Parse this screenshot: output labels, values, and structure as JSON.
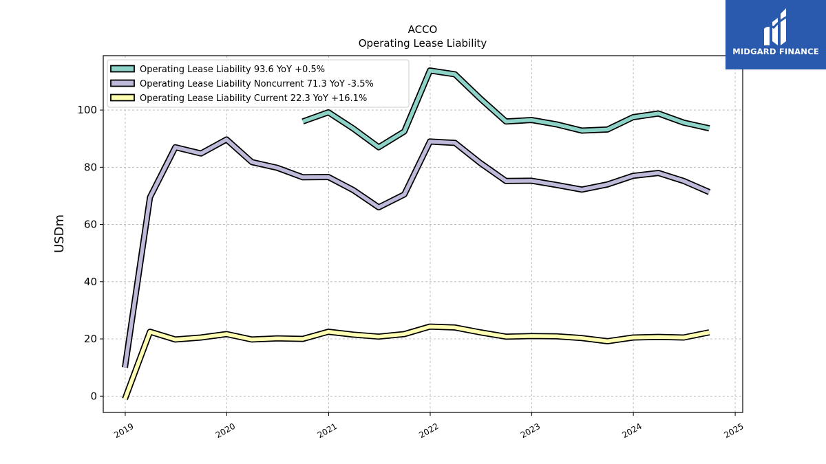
{
  "logo": {
    "text": "MIDGARD FINANCE"
  },
  "chart_data": {
    "type": "line",
    "title": "ACCO",
    "subtitle": "Operating Lease Liability",
    "ylabel": "USDm",
    "xlabel": "",
    "ylim": [
      -5.7,
      119
    ],
    "yticks": [
      0,
      20,
      40,
      60,
      80,
      100
    ],
    "xlim": [
      "2018-10-14",
      "2025-01-28"
    ],
    "xticks": [
      "2019",
      "2020",
      "2021",
      "2022",
      "2023",
      "2024",
      "2025"
    ],
    "grid": true,
    "legend_position": "top-left",
    "series": [
      {
        "name": "Operating Lease Liability  93.6 YoY +0.5%",
        "color": "#8dd3c7",
        "points": [
          [
            "2020-09-30",
            96.0
          ],
          [
            "2020-12-31",
            99.2
          ],
          [
            "2021-03-31",
            93.5
          ],
          [
            "2021-06-30",
            87.0
          ],
          [
            "2021-09-30",
            92.5
          ],
          [
            "2021-12-31",
            113.8
          ],
          [
            "2022-03-31",
            112.5
          ],
          [
            "2022-06-30",
            104.0
          ],
          [
            "2022-09-30",
            96.0
          ],
          [
            "2022-12-31",
            96.5
          ],
          [
            "2023-03-31",
            95.0
          ],
          [
            "2023-06-30",
            92.8
          ],
          [
            "2023-09-30",
            93.2
          ],
          [
            "2023-12-31",
            97.5
          ],
          [
            "2024-03-31",
            98.8
          ],
          [
            "2024-06-30",
            95.6
          ],
          [
            "2024-09-30",
            93.6
          ]
        ]
      },
      {
        "name": "Operating Lease Liability Noncurrent  71.3 YoY -3.5%",
        "color": "#bebada",
        "points": [
          [
            "2018-12-31",
            10.0
          ],
          [
            "2019-03-31",
            69.5
          ],
          [
            "2019-06-30",
            87.0
          ],
          [
            "2019-09-30",
            84.8
          ],
          [
            "2019-12-31",
            89.7
          ],
          [
            "2020-03-31",
            81.8
          ],
          [
            "2020-06-30",
            79.8
          ],
          [
            "2020-09-30",
            76.5
          ],
          [
            "2020-12-31",
            76.6
          ],
          [
            "2021-03-31",
            72.0
          ],
          [
            "2021-06-30",
            66.0
          ],
          [
            "2021-09-30",
            70.5
          ],
          [
            "2021-12-31",
            89.0
          ],
          [
            "2022-03-31",
            88.5
          ],
          [
            "2022-06-30",
            81.5
          ],
          [
            "2022-09-30",
            75.2
          ],
          [
            "2022-12-31",
            75.3
          ],
          [
            "2023-03-31",
            73.8
          ],
          [
            "2023-06-30",
            72.2
          ],
          [
            "2023-09-30",
            74.0
          ],
          [
            "2023-12-31",
            77.0
          ],
          [
            "2024-03-31",
            78.0
          ],
          [
            "2024-06-30",
            75.2
          ],
          [
            "2024-09-30",
            71.3
          ]
        ]
      },
      {
        "name": "Operating Lease Liability Current  22.3 YoY +16.1%",
        "color": "#ffffb3",
        "points": [
          [
            "2018-12-31",
            -1.0
          ],
          [
            "2019-03-31",
            22.5
          ],
          [
            "2019-06-30",
            19.8
          ],
          [
            "2019-09-30",
            20.5
          ],
          [
            "2019-12-31",
            21.7
          ],
          [
            "2020-03-31",
            19.8
          ],
          [
            "2020-06-30",
            20.2
          ],
          [
            "2020-09-30",
            20.0
          ],
          [
            "2020-12-31",
            22.5
          ],
          [
            "2021-03-31",
            21.5
          ],
          [
            "2021-06-30",
            20.8
          ],
          [
            "2021-09-30",
            21.7
          ],
          [
            "2021-12-31",
            24.3
          ],
          [
            "2022-03-31",
            24.0
          ],
          [
            "2022-06-30",
            22.3
          ],
          [
            "2022-09-30",
            20.8
          ],
          [
            "2022-12-31",
            21.0
          ],
          [
            "2023-03-31",
            20.9
          ],
          [
            "2023-06-30",
            20.3
          ],
          [
            "2023-09-30",
            19.2
          ],
          [
            "2023-12-31",
            20.5
          ],
          [
            "2024-03-31",
            20.7
          ],
          [
            "2024-06-30",
            20.5
          ],
          [
            "2024-09-30",
            22.3
          ]
        ]
      }
    ]
  }
}
